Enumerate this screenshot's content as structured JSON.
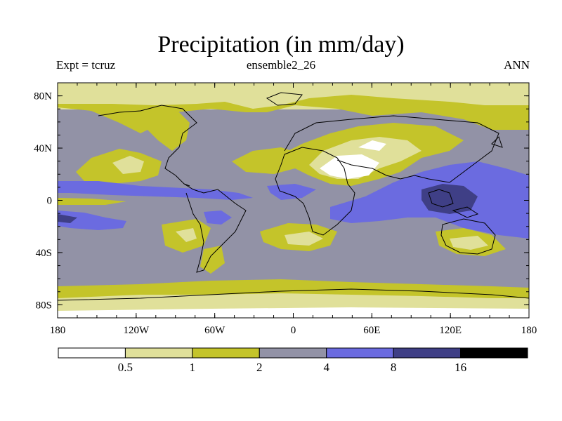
{
  "header": {
    "title": "Precipitation (in mm/day)",
    "left_label": "Expt = tcruz",
    "center_label": "ensemble2_26",
    "right_label": "ANN"
  },
  "map": {
    "y_ticks": [
      "80N",
      "40N",
      "0",
      "40S",
      "80S"
    ],
    "x_ticks": [
      "180",
      "120W",
      "60W",
      "0",
      "60E",
      "120E",
      "180"
    ],
    "lon_range": [
      -180,
      180
    ],
    "lat_range": [
      -90,
      90
    ],
    "projection": "cylindrical-equidistant"
  },
  "colorbar": {
    "labels": [
      "0.5",
      "1",
      "2",
      "4",
      "8",
      "16"
    ],
    "colors": [
      "#ffffff",
      "#e0e09a",
      "#c4c42a",
      "#9292a6",
      "#6b6be0",
      "#3f3f86",
      "#000000"
    ]
  },
  "palette": {
    "lt_0_5": "#ffffff",
    "0_5_to_1": "#e0e09a",
    "1_to_2": "#c4c42a",
    "2_to_4": "#9292a6",
    "4_to_8": "#6b6be0",
    "8_to_16": "#3f3f86"
  }
}
